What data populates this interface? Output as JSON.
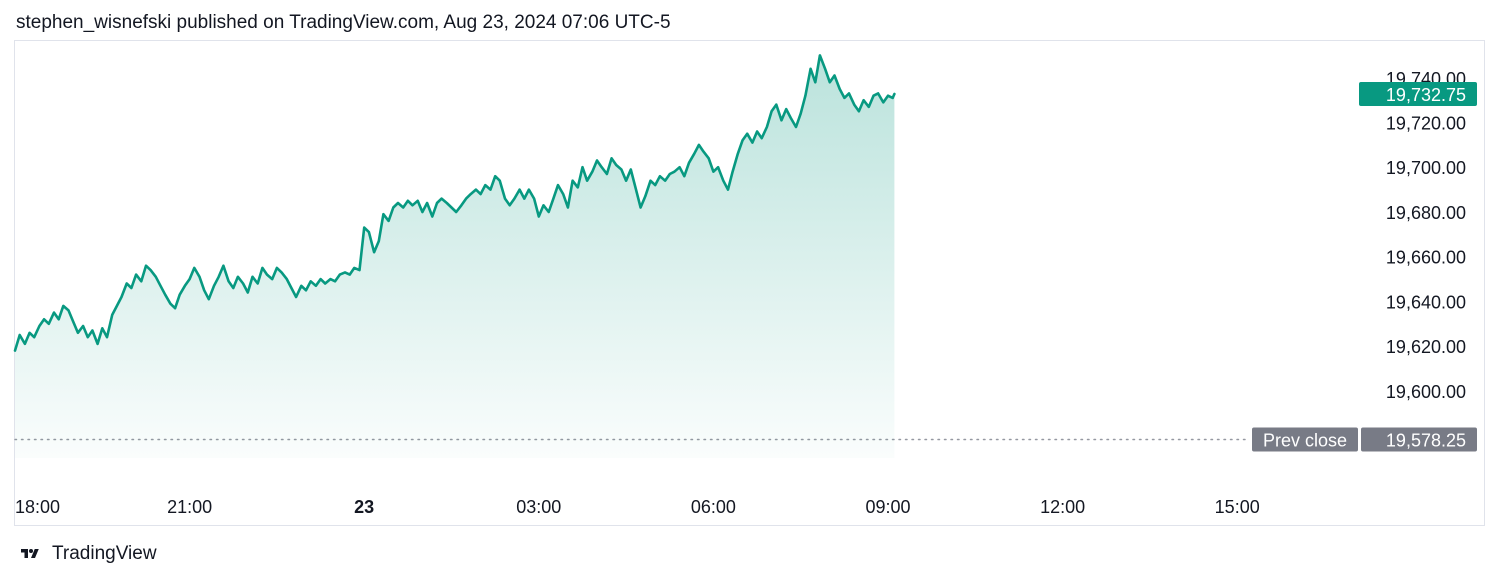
{
  "header": {
    "published_text": "stephen_wisnefski published on TradingView.com, Aug 23, 2024 07:06 UTC-5"
  },
  "footer": {
    "brand_logo": "tradingview-logo-icon",
    "brand_name": "TradingView"
  },
  "colors": {
    "line": "#089981",
    "fill_top": "rgba(8,153,129,0.28)",
    "fill_bottom": "rgba(8,153,129,0.02)",
    "price_tag_bg": "#089981",
    "prev_close_tag_bg": "#787b86",
    "axis_text": "#131722",
    "dotted_line": "#9598a1"
  },
  "chart_data": {
    "type": "area",
    "title": "",
    "xlabel": "",
    "ylabel": "",
    "x_ticks": [
      {
        "label": "18:00",
        "hour": 0,
        "bold": false
      },
      {
        "label": "21:00",
        "hour": 3,
        "bold": false
      },
      {
        "label": "23",
        "hour": 6,
        "bold": true
      },
      {
        "label": "03:00",
        "hour": 9,
        "bold": false
      },
      {
        "label": "06:00",
        "hour": 12,
        "bold": false
      },
      {
        "label": "09:00",
        "hour": 15,
        "bold": false
      },
      {
        "label": "12:00",
        "hour": 18,
        "bold": false
      },
      {
        "label": "15:00",
        "hour": 21,
        "bold": false
      }
    ],
    "x_range_hours": [
      0,
      23.5
    ],
    "y_ticks": [
      19600,
      19620,
      19640,
      19660,
      19680,
      19700,
      19720,
      19740
    ],
    "y_tick_labels": [
      "19,600.00",
      "19,620.00",
      "19,640.00",
      "19,660.00",
      "19,680.00",
      "19,700.00",
      "19,720.00",
      "19,740.00"
    ],
    "y_range": [
      19570,
      19756
    ],
    "last_price": 19732.75,
    "last_price_label": "19,732.75",
    "prev_close": 19578.25,
    "prev_close_label": "19,578.25",
    "prev_close_caption": "Prev close",
    "grid": false,
    "series": [
      {
        "points": [
          [
            0.0,
            19618
          ],
          [
            0.08,
            19625
          ],
          [
            0.17,
            19621
          ],
          [
            0.25,
            19626
          ],
          [
            0.33,
            19624
          ],
          [
            0.42,
            19629
          ],
          [
            0.5,
            19632
          ],
          [
            0.58,
            19630
          ],
          [
            0.67,
            19635
          ],
          [
            0.75,
            19632
          ],
          [
            0.83,
            19638
          ],
          [
            0.92,
            19636
          ],
          [
            1.0,
            19631
          ],
          [
            1.08,
            19626
          ],
          [
            1.17,
            19629
          ],
          [
            1.25,
            19624
          ],
          [
            1.33,
            19627
          ],
          [
            1.42,
            19621
          ],
          [
            1.5,
            19628
          ],
          [
            1.58,
            19624
          ],
          [
            1.67,
            19634
          ],
          [
            1.75,
            19638
          ],
          [
            1.83,
            19642
          ],
          [
            1.92,
            19648
          ],
          [
            2.0,
            19646
          ],
          [
            2.08,
            19652
          ],
          [
            2.17,
            19649
          ],
          [
            2.25,
            19656
          ],
          [
            2.33,
            19654
          ],
          [
            2.42,
            19651
          ],
          [
            2.5,
            19647
          ],
          [
            2.58,
            19643
          ],
          [
            2.67,
            19639
          ],
          [
            2.75,
            19637
          ],
          [
            2.83,
            19643
          ],
          [
            2.92,
            19647
          ],
          [
            3.0,
            19650
          ],
          [
            3.08,
            19655
          ],
          [
            3.17,
            19651
          ],
          [
            3.25,
            19645
          ],
          [
            3.33,
            19641
          ],
          [
            3.42,
            19647
          ],
          [
            3.5,
            19651
          ],
          [
            3.58,
            19656
          ],
          [
            3.67,
            19649
          ],
          [
            3.75,
            19646
          ],
          [
            3.83,
            19651
          ],
          [
            3.92,
            19648
          ],
          [
            4.0,
            19644
          ],
          [
            4.08,
            19651
          ],
          [
            4.17,
            19648
          ],
          [
            4.25,
            19655
          ],
          [
            4.33,
            19652
          ],
          [
            4.42,
            19650
          ],
          [
            4.5,
            19655
          ],
          [
            4.58,
            19653
          ],
          [
            4.67,
            19650
          ],
          [
            4.75,
            19646
          ],
          [
            4.83,
            19642
          ],
          [
            4.92,
            19647
          ],
          [
            5.0,
            19645
          ],
          [
            5.08,
            19649
          ],
          [
            5.17,
            19647
          ],
          [
            5.25,
            19650
          ],
          [
            5.33,
            19648
          ],
          [
            5.42,
            19650
          ],
          [
            5.5,
            19649
          ],
          [
            5.58,
            19652
          ],
          [
            5.67,
            19653
          ],
          [
            5.75,
            19652
          ],
          [
            5.83,
            19655
          ],
          [
            5.92,
            19654
          ],
          [
            6.0,
            19673
          ],
          [
            6.08,
            19671
          ],
          [
            6.17,
            19662
          ],
          [
            6.25,
            19667
          ],
          [
            6.33,
            19679
          ],
          [
            6.42,
            19676
          ],
          [
            6.5,
            19682
          ],
          [
            6.58,
            19684
          ],
          [
            6.67,
            19682
          ],
          [
            6.75,
            19685
          ],
          [
            6.83,
            19683
          ],
          [
            6.92,
            19685
          ],
          [
            7.0,
            19680
          ],
          [
            7.08,
            19684
          ],
          [
            7.17,
            19678
          ],
          [
            7.25,
            19684
          ],
          [
            7.33,
            19686
          ],
          [
            7.42,
            19684
          ],
          [
            7.5,
            19682
          ],
          [
            7.58,
            19680
          ],
          [
            7.67,
            19683
          ],
          [
            7.75,
            19686
          ],
          [
            7.83,
            19688
          ],
          [
            7.92,
            19690
          ],
          [
            8.0,
            19688
          ],
          [
            8.08,
            19692
          ],
          [
            8.17,
            19690
          ],
          [
            8.25,
            19696
          ],
          [
            8.33,
            19694
          ],
          [
            8.42,
            19686
          ],
          [
            8.5,
            19683
          ],
          [
            8.58,
            19686
          ],
          [
            8.67,
            19690
          ],
          [
            8.75,
            19686
          ],
          [
            8.83,
            19690
          ],
          [
            8.92,
            19686
          ],
          [
            9.0,
            19678
          ],
          [
            9.08,
            19683
          ],
          [
            9.17,
            19680
          ],
          [
            9.25,
            19686
          ],
          [
            9.33,
            19692
          ],
          [
            9.42,
            19688
          ],
          [
            9.5,
            19682
          ],
          [
            9.58,
            19694
          ],
          [
            9.67,
            19691
          ],
          [
            9.75,
            19700
          ],
          [
            9.83,
            19694
          ],
          [
            9.92,
            19698
          ],
          [
            10.0,
            19703
          ],
          [
            10.08,
            19700
          ],
          [
            10.17,
            19697
          ],
          [
            10.25,
            19704
          ],
          [
            10.33,
            19701
          ],
          [
            10.42,
            19699
          ],
          [
            10.5,
            19694
          ],
          [
            10.58,
            19699
          ],
          [
            10.67,
            19690
          ],
          [
            10.75,
            19682
          ],
          [
            10.83,
            19687
          ],
          [
            10.92,
            19694
          ],
          [
            11.0,
            19692
          ],
          [
            11.08,
            19696
          ],
          [
            11.17,
            19694
          ],
          [
            11.25,
            19697
          ],
          [
            11.33,
            19698
          ],
          [
            11.42,
            19700
          ],
          [
            11.5,
            19696
          ],
          [
            11.58,
            19702
          ],
          [
            11.67,
            19706
          ],
          [
            11.75,
            19710
          ],
          [
            11.83,
            19707
          ],
          [
            11.92,
            19704
          ],
          [
            12.0,
            19698
          ],
          [
            12.08,
            19700
          ],
          [
            12.17,
            19694
          ],
          [
            12.25,
            19690
          ],
          [
            12.33,
            19698
          ],
          [
            12.42,
            19706
          ],
          [
            12.5,
            19712
          ],
          [
            12.58,
            19715
          ],
          [
            12.67,
            19711
          ],
          [
            12.75,
            19716
          ],
          [
            12.83,
            19713
          ],
          [
            12.92,
            19718
          ],
          [
            13.0,
            19725
          ],
          [
            13.08,
            19728
          ],
          [
            13.17,
            19721
          ],
          [
            13.25,
            19726
          ],
          [
            13.33,
            19722
          ],
          [
            13.42,
            19718
          ],
          [
            13.5,
            19724
          ],
          [
            13.58,
            19732
          ],
          [
            13.67,
            19744
          ],
          [
            13.75,
            19738
          ],
          [
            13.83,
            19750
          ],
          [
            13.92,
            19744
          ],
          [
            14.0,
            19738
          ],
          [
            14.08,
            19741
          ],
          [
            14.17,
            19735
          ],
          [
            14.25,
            19731
          ],
          [
            14.33,
            19733
          ],
          [
            14.42,
            19728
          ],
          [
            14.5,
            19725
          ],
          [
            14.58,
            19730
          ],
          [
            14.67,
            19727
          ],
          [
            14.75,
            19732
          ],
          [
            14.83,
            19733
          ],
          [
            14.92,
            19729
          ],
          [
            15.0,
            19732
          ],
          [
            15.08,
            19731
          ],
          [
            15.11,
            19732.75
          ]
        ]
      }
    ]
  }
}
